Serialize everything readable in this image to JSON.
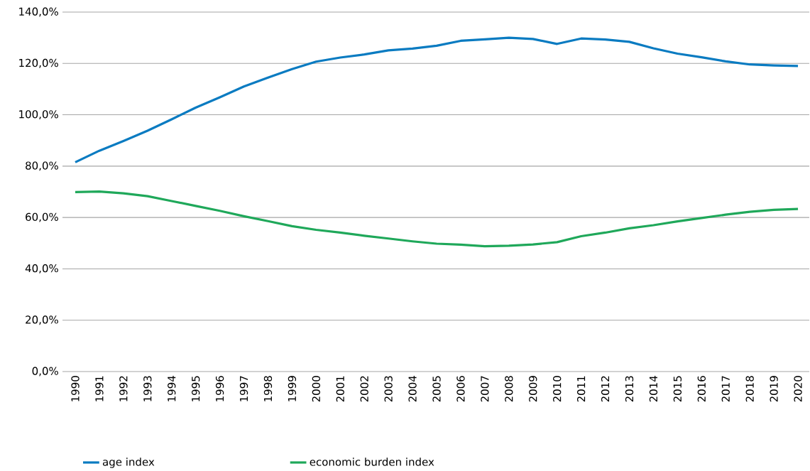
{
  "chart_data": {
    "type": "line",
    "categories": [
      "1990",
      "1991",
      "1992",
      "1993",
      "1994",
      "1995",
      "1996",
      "1997",
      "1998",
      "1999",
      "2000",
      "2001",
      "2002",
      "2003",
      "2004",
      "2005",
      "2006",
      "2007",
      "2008",
      "2009",
      "2010",
      "2011",
      "2012",
      "2013",
      "2014",
      "2015",
      "2016",
      "2017",
      "2018",
      "2019",
      "2020"
    ],
    "series": [
      {
        "name": "age index",
        "color": "#0a7bc1",
        "values": [
          81.5,
          86,
          89.8,
          93.8,
          98.2,
          102.8,
          106.8,
          111,
          114.5,
          117.8,
          120.7,
          122.3,
          123.5,
          125.1,
          125.8,
          126.9,
          128.8,
          129.4,
          130.0,
          129.5,
          127.6,
          129.7,
          129.3,
          128.4,
          125.9,
          123.8,
          122.4,
          120.8,
          119.6,
          119.2,
          119.0
        ]
      },
      {
        "name": "economic burden index",
        "color": "#1fa85a",
        "values": [
          69.9,
          70.1,
          69.4,
          68.3,
          66.4,
          64.5,
          62.6,
          60.5,
          58.6,
          56.6,
          55.2,
          54.1,
          52.9,
          51.8,
          50.7,
          49.8,
          49.4,
          48.8,
          49.0,
          49.5,
          50.4,
          52.7,
          54.1,
          55.8,
          57.0,
          58.5,
          59.8,
          61.1,
          62.2,
          63.0,
          63.3
        ]
      }
    ],
    "ylim": [
      0,
      140
    ],
    "yticks": [
      {
        "value": 0,
        "label": "0,0%"
      },
      {
        "value": 20,
        "label": "20,0%"
      },
      {
        "value": 40,
        "label": "40,0%"
      },
      {
        "value": 60,
        "label": "60,0%"
      },
      {
        "value": 80,
        "label": "80,0%"
      },
      {
        "value": 100,
        "label": "100,0%"
      },
      {
        "value": 120,
        "label": "120,0%"
      },
      {
        "value": 140,
        "label": "140,0%"
      }
    ],
    "grid": "y",
    "legend": "bottom",
    "marker": "none",
    "line_style": "solid"
  }
}
